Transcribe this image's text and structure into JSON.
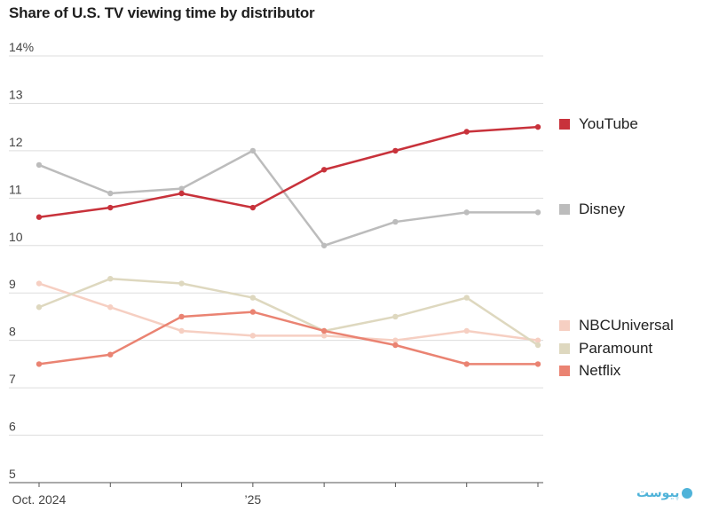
{
  "colors": {
    "YouTube": "#c8323b",
    "Disney": "#bcbcbc",
    "NBCUniversal": "#f6cfc2",
    "Paramount": "#ded8bf",
    "Netflix": "#ea8372",
    "grid": "#dddddd",
    "axis": "#555555"
  },
  "chart_data": {
    "type": "line",
    "title": "Share of U.S. TV viewing time by distributor",
    "xlabel": "",
    "ylabel": "",
    "x": [
      "2024-10",
      "2024-11",
      "2024-12",
      "2025-01",
      "2025-02",
      "2025-03",
      "2025-04",
      "2025-05"
    ],
    "x_tick_labels": [
      "Oct. 2024",
      "",
      "",
      "’25",
      "",
      "",
      "",
      ""
    ],
    "ylim": [
      5,
      14
    ],
    "y_ticks": [
      5,
      6,
      7,
      8,
      9,
      10,
      11,
      12,
      13,
      14
    ],
    "y_tick_labels": [
      "5",
      "6",
      "7",
      "8",
      "9",
      "10",
      "11",
      "12",
      "13",
      "14%"
    ],
    "grid": true,
    "legend_position": "right",
    "series": [
      {
        "name": "YouTube",
        "values": [
          10.6,
          10.8,
          11.1,
          10.8,
          11.6,
          12.0,
          12.4,
          12.5
        ]
      },
      {
        "name": "Disney",
        "values": [
          11.7,
          11.1,
          11.2,
          12.0,
          10.0,
          10.5,
          10.7,
          10.7
        ]
      },
      {
        "name": "NBCUniversal",
        "values": [
          9.2,
          8.7,
          8.2,
          8.1,
          8.1,
          8.0,
          8.2,
          8.0
        ]
      },
      {
        "name": "Paramount",
        "values": [
          8.7,
          9.3,
          9.2,
          8.9,
          8.2,
          8.5,
          8.9,
          7.9
        ]
      },
      {
        "name": "Netflix",
        "values": [
          7.5,
          7.7,
          8.5,
          8.6,
          8.2,
          7.9,
          7.5,
          7.5
        ]
      }
    ]
  },
  "legend": [
    {
      "name": "YouTube"
    },
    {
      "name": "Disney"
    },
    {
      "name": "NBCUniversal"
    },
    {
      "name": "Paramount"
    },
    {
      "name": "Netflix"
    }
  ],
  "watermark": {
    "text": "پیوست"
  }
}
